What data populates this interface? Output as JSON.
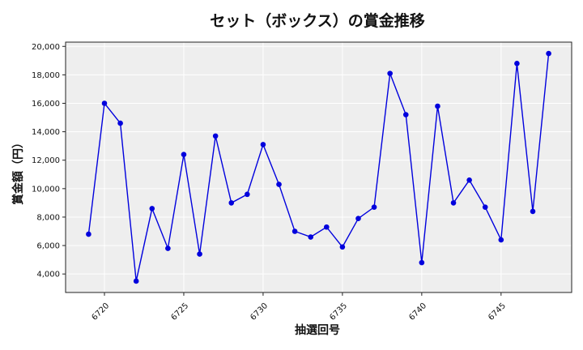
{
  "chart_data": {
    "type": "line",
    "title": "セット（ボックス）の賞金推移",
    "xlabel": "抽選回号",
    "ylabel": "賞金額（円）",
    "x": [
      6719,
      6720,
      6721,
      6722,
      6723,
      6724,
      6725,
      6726,
      6727,
      6728,
      6729,
      6730,
      6731,
      6732,
      6733,
      6734,
      6735,
      6736,
      6737,
      6738,
      6739,
      6740,
      6741,
      6742,
      6743,
      6744,
      6745,
      6746,
      6747,
      6748
    ],
    "series": [
      {
        "values": [
          6800,
          16000,
          14600,
          3500,
          8600,
          5800,
          12400,
          5400,
          13700,
          9000,
          9600,
          13100,
          10300,
          7000,
          6600,
          7300,
          5900,
          7900,
          8700,
          18100,
          15200,
          4800,
          15800,
          9000,
          10600,
          8700,
          6400,
          18800,
          8400,
          19500
        ],
        "color": "#0000dd"
      }
    ],
    "xlim": [
      6717.55,
      6749.45
    ],
    "ylim": [
      2700,
      20300
    ],
    "xticks": [
      6720,
      6725,
      6730,
      6735,
      6740,
      6745
    ],
    "xtick_labels": [
      "6720",
      "6725",
      "6730",
      "6735",
      "6740",
      "6745"
    ],
    "yticks": [
      4000,
      6000,
      8000,
      10000,
      12000,
      14000,
      16000,
      18000,
      20000
    ],
    "ytick_labels": [
      "4,000",
      "6,000",
      "8,000",
      "10,000",
      "12,000",
      "14,000",
      "16,000",
      "18,000",
      "20,000"
    ],
    "grid": true,
    "background": "#eeeeee",
    "grid_color": "#ffffff"
  }
}
